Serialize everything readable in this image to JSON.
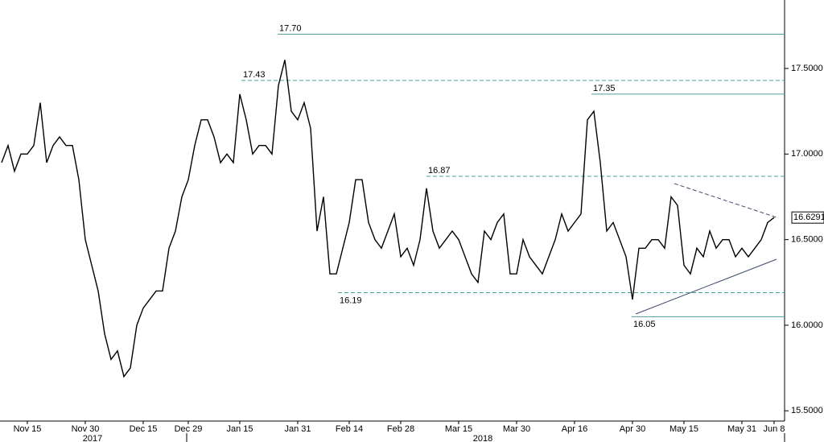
{
  "chart_data": {
    "type": "line",
    "categories": [
      null,
      null,
      null,
      null,
      "Nov 15",
      null,
      null,
      null,
      null,
      null,
      null,
      null,
      null,
      "Nov 30",
      null,
      null,
      null,
      null,
      null,
      null,
      null,
      null,
      "Dec 15",
      null,
      null,
      null,
      null,
      null,
      null,
      "Dec 29",
      null,
      null,
      null,
      null,
      null,
      null,
      null,
      "Jan 15",
      null,
      null,
      null,
      null,
      null,
      null,
      null,
      null,
      "Jan 31",
      null,
      null,
      null,
      null,
      null,
      null,
      null,
      "Feb 14",
      null,
      null,
      null,
      null,
      null,
      null,
      null,
      "Feb 28",
      null,
      null,
      null,
      null,
      null,
      null,
      null,
      null,
      "Mar 15",
      null,
      null,
      null,
      null,
      null,
      null,
      null,
      null,
      "Mar 30",
      null,
      null,
      null,
      null,
      null,
      null,
      null,
      null,
      "Apr 16",
      null,
      null,
      null,
      null,
      null,
      null,
      null,
      null,
      "Apr 30",
      null,
      null,
      null,
      null,
      null,
      null,
      null,
      "May 15",
      null,
      null,
      null,
      null,
      null,
      null,
      null,
      null,
      "May 31",
      null,
      null,
      null,
      null,
      "Jun 8"
    ],
    "values": [
      16.95,
      17.05,
      16.9,
      17.0,
      17.0,
      17.05,
      17.3,
      16.95,
      17.05,
      17.1,
      17.05,
      17.05,
      16.85,
      16.5,
      16.35,
      16.2,
      15.95,
      15.8,
      15.85,
      15.7,
      15.75,
      16.0,
      16.1,
      16.15,
      16.2,
      16.2,
      16.45,
      16.55,
      16.75,
      16.85,
      17.05,
      17.2,
      17.2,
      17.1,
      16.95,
      17.0,
      16.95,
      17.35,
      17.2,
      17.0,
      17.05,
      17.05,
      17.0,
      17.4,
      17.55,
      17.25,
      17.2,
      17.3,
      17.15,
      16.55,
      16.75,
      16.3,
      16.3,
      16.45,
      16.6,
      16.85,
      16.85,
      16.6,
      16.5,
      16.45,
      16.55,
      16.65,
      16.4,
      16.45,
      16.35,
      16.5,
      16.8,
      16.55,
      16.45,
      16.5,
      16.55,
      16.5,
      16.4,
      16.3,
      16.25,
      16.55,
      16.5,
      16.6,
      16.65,
      16.3,
      16.3,
      16.5,
      16.4,
      16.35,
      16.3,
      16.4,
      16.5,
      16.65,
      16.55,
      16.6,
      16.65,
      17.2,
      17.25,
      16.95,
      16.55,
      16.6,
      16.5,
      16.4,
      16.15,
      16.45,
      16.45,
      16.5,
      16.5,
      16.45,
      16.75,
      16.7,
      16.35,
      16.3,
      16.45,
      16.4,
      16.55,
      16.45,
      16.5,
      16.5,
      16.4,
      16.45,
      16.4,
      16.45,
      16.5,
      16.6,
      16.6291
    ],
    "color": "#000000",
    "ylim": [
      15.44,
      17.9
    ],
    "yticks": [
      {
        "value": 15.5,
        "label": "15.5000"
      },
      {
        "value": 16,
        "label": "16.0000"
      },
      {
        "value": 16.5,
        "label": "16.5000"
      },
      {
        "value": 17,
        "label": "17.0000"
      },
      {
        "value": 17.5,
        "label": "17.5000"
      }
    ],
    "years": [
      "2017",
      "2018"
    ],
    "levels": [
      {
        "value": 17.7,
        "label": "17.70",
        "style": "solid"
      },
      {
        "value": 17.43,
        "label": "17.43",
        "style": "dashed"
      },
      {
        "value": 17.35,
        "label": "17.35",
        "style": "solid"
      },
      {
        "value": 16.87,
        "label": "16.87",
        "style": "dashed"
      },
      {
        "value": 16.19,
        "label": "16.19",
        "style": "dashed"
      },
      {
        "value": 16.05,
        "label": "16.05",
        "style": "solid"
      }
    ],
    "level_color": "#4f9e98"
  }
}
